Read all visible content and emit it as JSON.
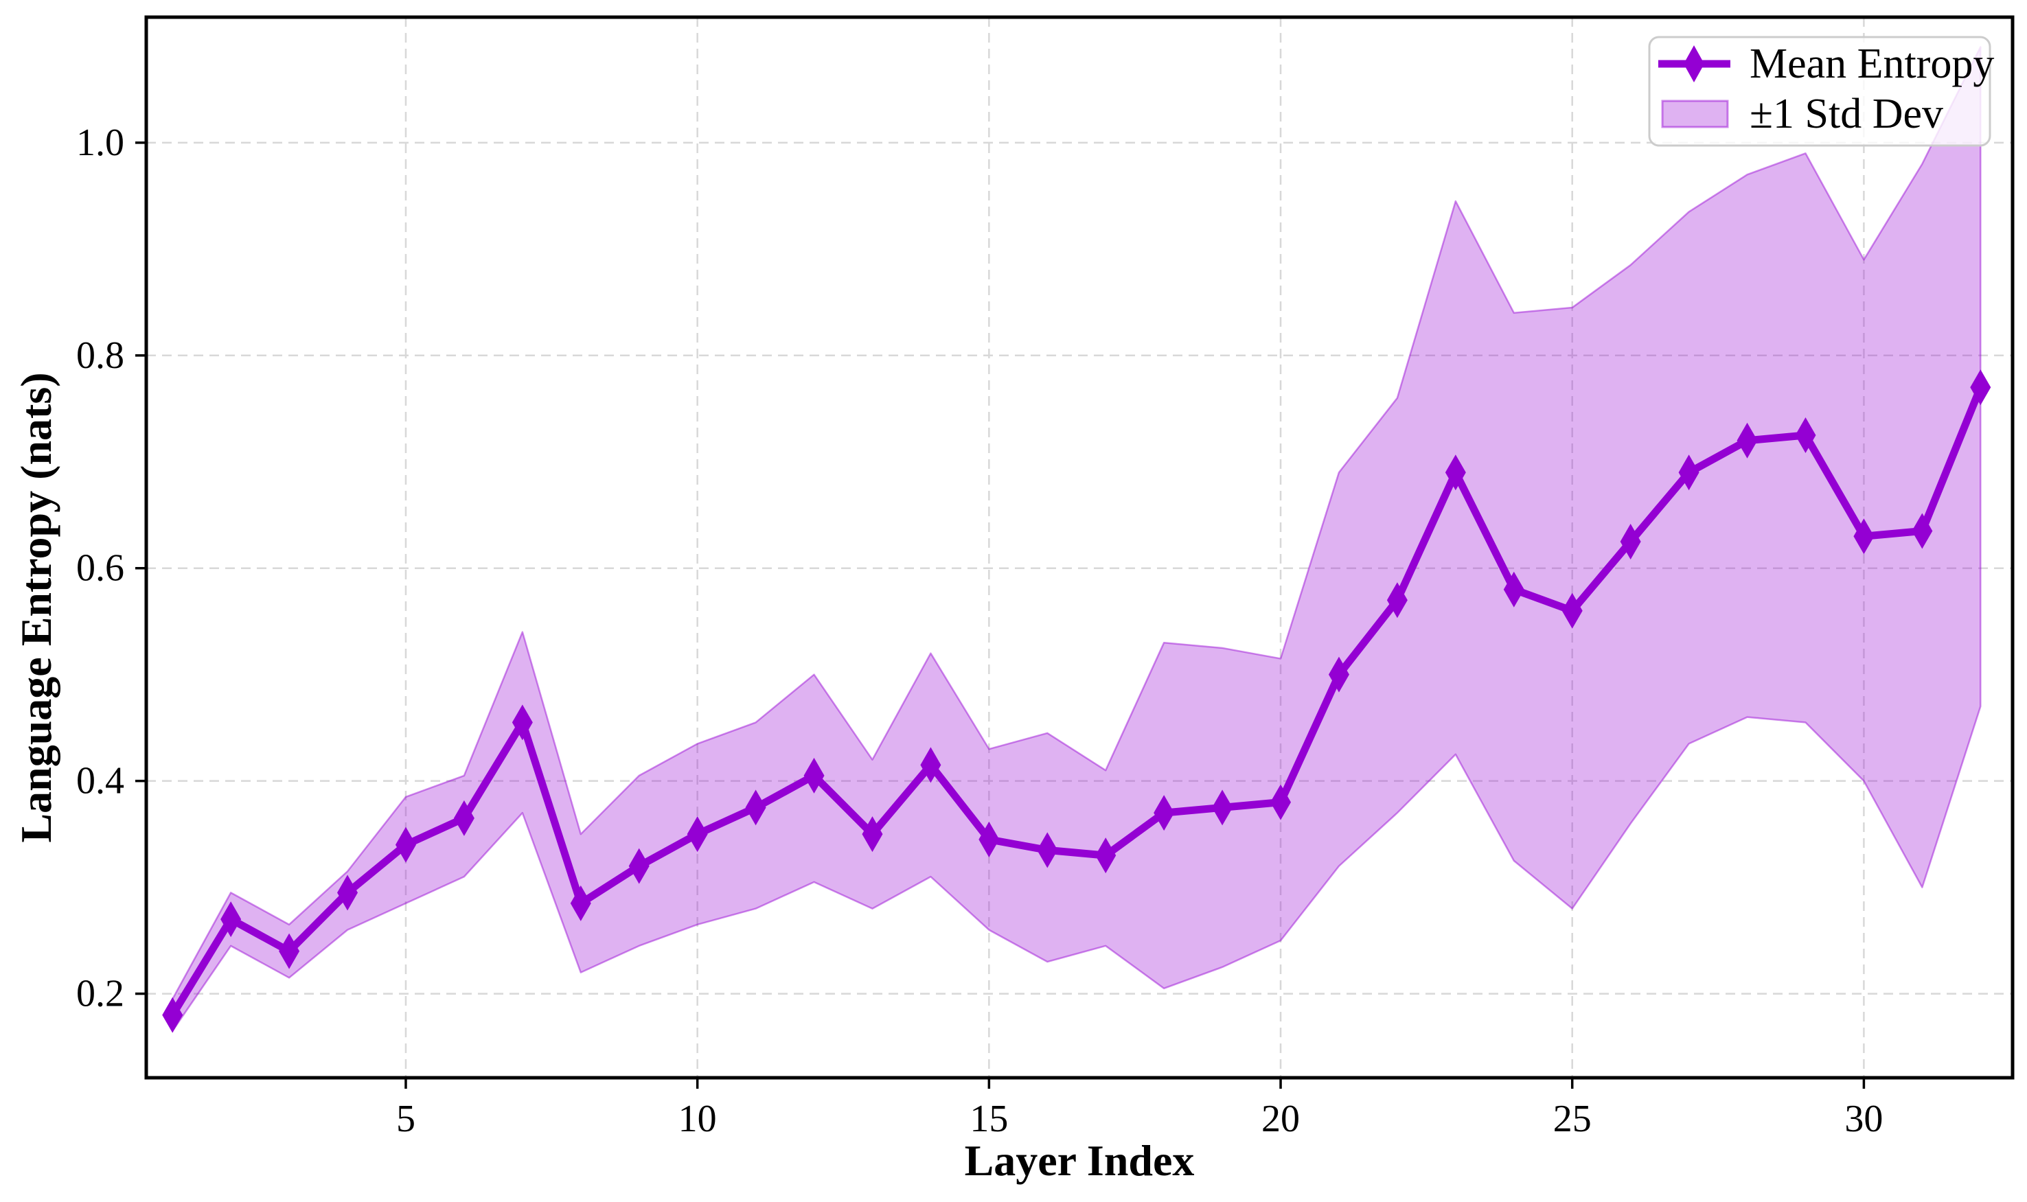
{
  "chart_data": {
    "type": "line",
    "title": "",
    "xlabel": "Layer Index",
    "ylabel": "Language Entropy (nats)",
    "x": [
      1,
      2,
      3,
      4,
      5,
      6,
      7,
      8,
      9,
      10,
      11,
      12,
      13,
      14,
      15,
      16,
      17,
      18,
      19,
      20,
      21,
      22,
      23,
      24,
      25,
      26,
      27,
      28,
      29,
      30,
      31,
      32
    ],
    "series": [
      {
        "name": "Mean Entropy",
        "style": "line-with-diamond-markers",
        "values": [
          0.18,
          0.27,
          0.24,
          0.295,
          0.34,
          0.365,
          0.455,
          0.285,
          0.32,
          0.35,
          0.375,
          0.405,
          0.35,
          0.415,
          0.345,
          0.335,
          0.33,
          0.37,
          0.375,
          0.38,
          0.5,
          0.57,
          0.69,
          0.58,
          0.56,
          0.625,
          0.69,
          0.72,
          0.725,
          0.63,
          0.635,
          0.77
        ]
      },
      {
        "name": "+1 Std Dev (band upper edge)",
        "style": "band-upper",
        "values": [
          0.195,
          0.295,
          0.265,
          0.315,
          0.385,
          0.405,
          0.54,
          0.35,
          0.405,
          0.435,
          0.455,
          0.5,
          0.42,
          0.52,
          0.43,
          0.445,
          0.41,
          0.53,
          0.525,
          0.515,
          0.69,
          0.76,
          0.945,
          0.84,
          0.845,
          0.885,
          0.935,
          0.97,
          0.99,
          0.89,
          0.98,
          1.09
        ]
      },
      {
        "name": "-1 Std Dev (band lower edge)",
        "style": "band-lower",
        "values": [
          0.165,
          0.245,
          0.215,
          0.26,
          0.285,
          0.31,
          0.37,
          0.22,
          0.245,
          0.265,
          0.28,
          0.305,
          0.28,
          0.31,
          0.26,
          0.23,
          0.245,
          0.205,
          0.225,
          0.25,
          0.32,
          0.37,
          0.425,
          0.325,
          0.28,
          0.36,
          0.435,
          0.46,
          0.455,
          0.4,
          0.3,
          0.47
        ]
      }
    ],
    "xticks": [
      5,
      10,
      15,
      20,
      25,
      30
    ],
    "xtick_labels": [
      "5",
      "10",
      "15",
      "20",
      "25",
      "30"
    ],
    "yticks": [
      0.2,
      0.4,
      0.6,
      0.8,
      1.0
    ],
    "ytick_labels": [
      "0.2",
      "0.4",
      "0.6",
      "0.8",
      "1.0"
    ],
    "xlim": [
      0.55,
      32.55
    ],
    "ylim": [
      0.121,
      1.118
    ],
    "grid": "dashed gridlines on both axes",
    "legend": {
      "position": "upper right",
      "items": [
        {
          "label": "Mean Entropy",
          "swatch": "purple line with diamond marker"
        },
        {
          "label": "±1 Std Dev",
          "swatch": "light purple filled band"
        }
      ]
    },
    "colors": {
      "line": "#9400D3",
      "marker": "#9400D3",
      "band_fill": "#9400D3",
      "band_fill_opacity": 0.3,
      "band_edge": "#9400D3",
      "band_edge_opacity": 0.45,
      "grid": "#D8D8D8",
      "spine": "#000000",
      "text": "#000000",
      "legend_border": "#CCCCCC"
    }
  }
}
